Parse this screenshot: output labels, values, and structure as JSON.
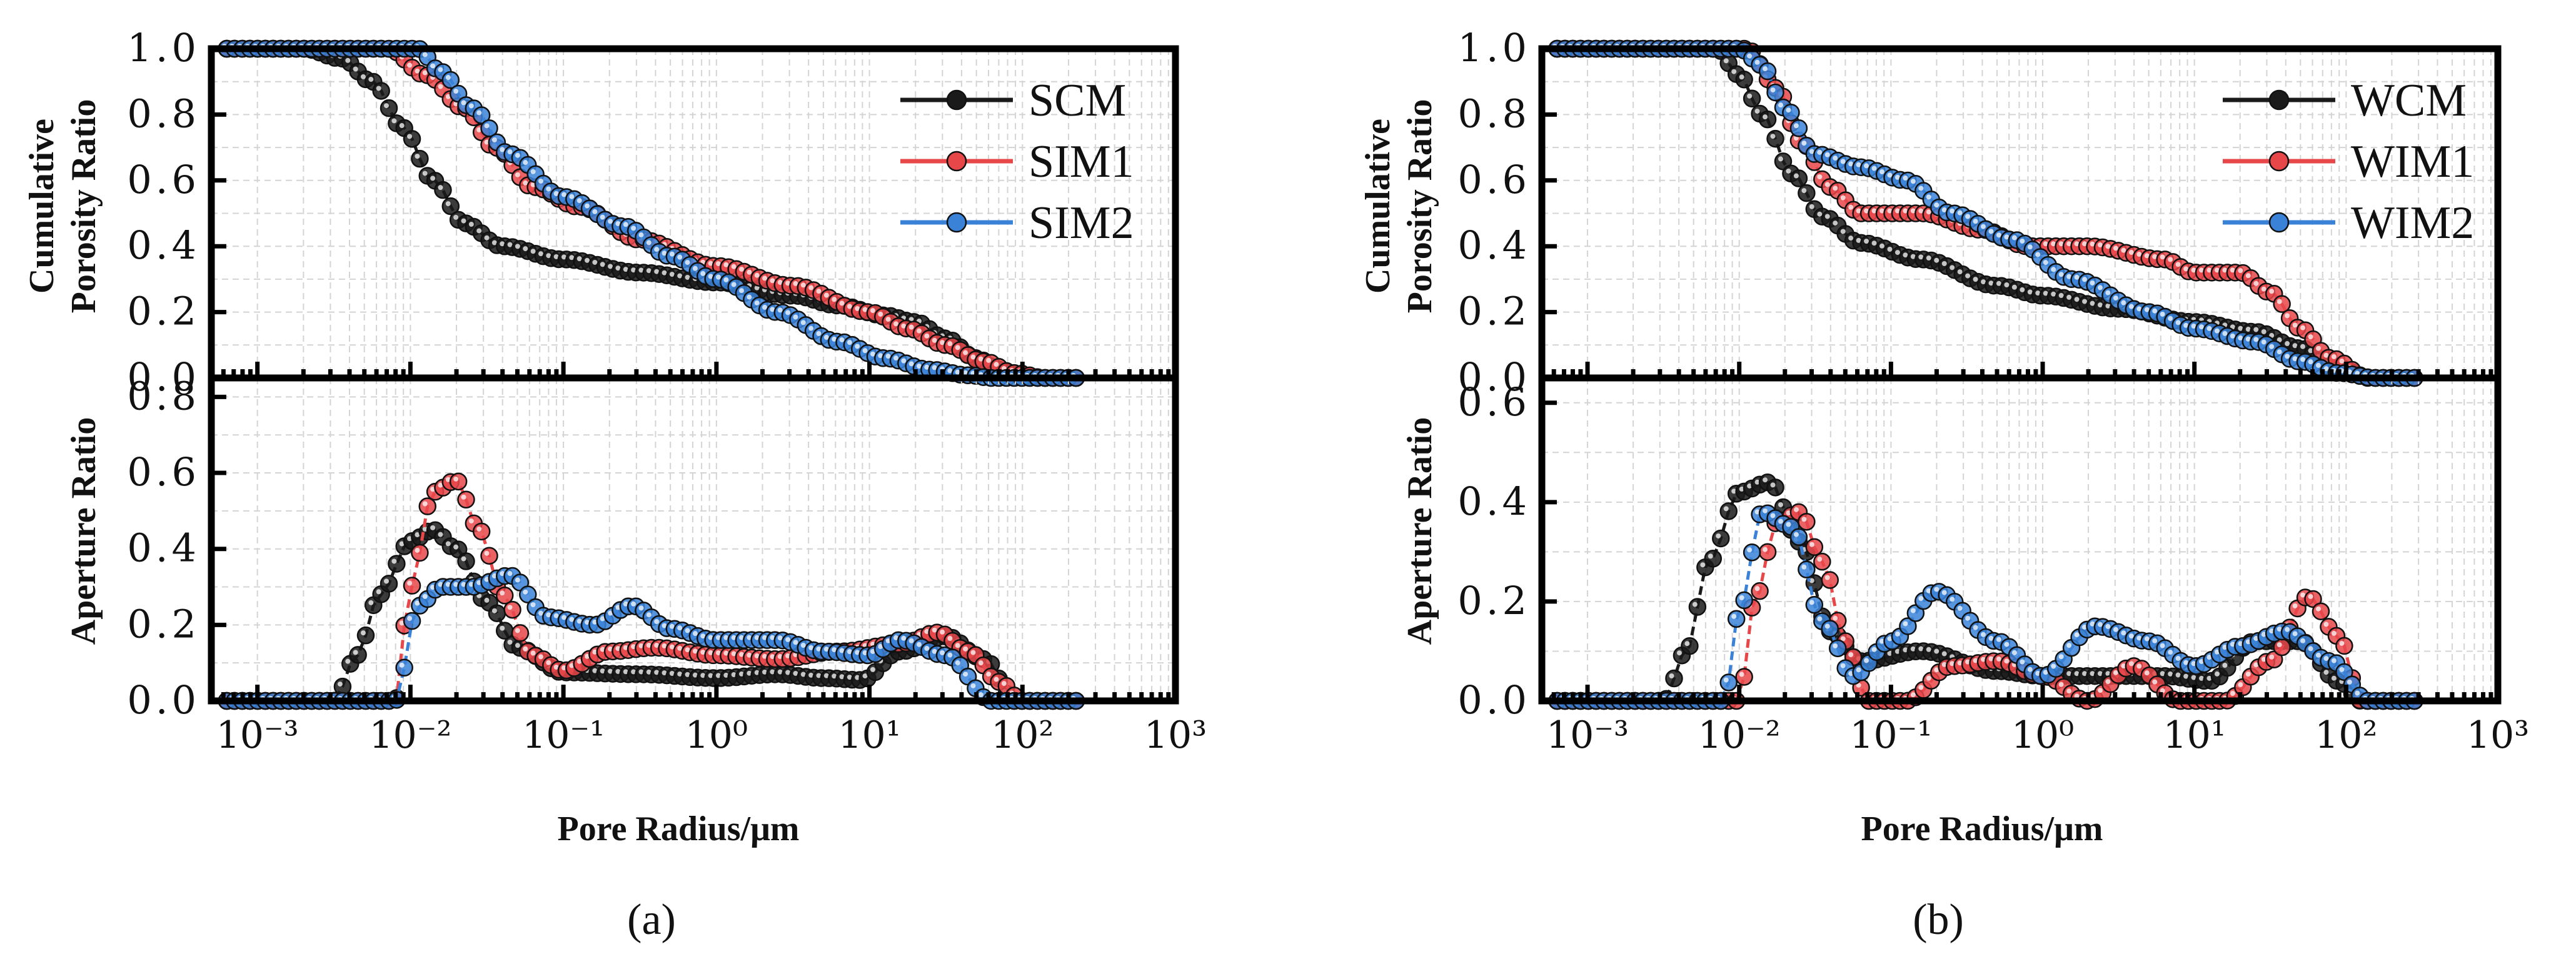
{
  "figure": {
    "x_axis_title": "Pore Radius/μm",
    "x_tick_labels": [
      "10⁻³",
      "10⁻²",
      "10⁻¹",
      "10⁰",
      "10¹",
      "10²",
      "10³"
    ],
    "cum_y_title_line1": "Cumulative",
    "cum_y_title_line2": "Porosity Ratio",
    "ap_y_title": "Aperture Ratio",
    "panel_a_label": "(a)",
    "panel_b_label": "(b)"
  },
  "colors": {
    "black": "#1a1a1a",
    "red": "#e8474a",
    "blue": "#3a82d8"
  },
  "chart_data": [
    {
      "id": "a-top",
      "type": "line",
      "xscale": "log",
      "xlim": [
        0.0005,
        1000
      ],
      "ylim": [
        0.0,
        1.0
      ],
      "yticks": [
        0.0,
        0.2,
        0.4,
        0.6,
        0.8,
        1.0
      ],
      "ytick_labels": [
        "0.0",
        "0.2",
        "0.4",
        "0.6",
        "0.8",
        "1.0"
      ],
      "ylabel": "Cumulative Porosity Ratio",
      "legend": "top-right",
      "series": [
        {
          "name": "SCM",
          "color": "#1a1a1a",
          "log_x": [
            -3.2,
            -2.7,
            -2.45,
            -2.25,
            -2.05,
            -1.85,
            -1.65,
            -1.4,
            -1.0,
            -0.5,
            0.0,
            0.5,
            0.8,
            1.1,
            1.3,
            1.5,
            1.7,
            1.85,
            1.95,
            2.1,
            2.35
          ],
          "y": [
            1.0,
            1.0,
            0.97,
            0.9,
            0.76,
            0.6,
            0.47,
            0.4,
            0.36,
            0.32,
            0.29,
            0.25,
            0.22,
            0.19,
            0.17,
            0.12,
            0.06,
            0.025,
            0.01,
            0.0,
            0.0
          ]
        },
        {
          "name": "SIM1",
          "color": "#e8474a",
          "log_x": [
            -3.2,
            -2.15,
            -1.9,
            -1.65,
            -1.45,
            -1.2,
            -0.9,
            -0.5,
            0.0,
            0.5,
            1.0,
            1.25,
            1.5,
            1.75,
            1.95,
            2.15,
            2.35
          ],
          "y": [
            1.0,
            1.0,
            0.92,
            0.82,
            0.7,
            0.58,
            0.52,
            0.42,
            0.34,
            0.28,
            0.2,
            0.15,
            0.1,
            0.05,
            0.015,
            0.0,
            0.0
          ]
        },
        {
          "name": "SIM2",
          "color": "#3a82d8",
          "log_x": [
            -3.2,
            -1.95,
            -1.8,
            -1.6,
            -1.35,
            -1.0,
            -0.6,
            -0.3,
            0.0,
            0.4,
            0.8,
            1.1,
            1.4,
            1.65,
            1.8,
            2.0,
            2.35
          ],
          "y": [
            1.0,
            1.0,
            0.93,
            0.82,
            0.68,
            0.55,
            0.46,
            0.37,
            0.3,
            0.2,
            0.11,
            0.06,
            0.025,
            0.008,
            0.0,
            0.0,
            0.0
          ]
        }
      ]
    },
    {
      "id": "a-bottom",
      "type": "line",
      "xscale": "log",
      "xlim": [
        0.0005,
        1000
      ],
      "ylim": [
        0.0,
        0.85
      ],
      "yticks": [
        0.0,
        0.2,
        0.4,
        0.6,
        0.8
      ],
      "ytick_labels": [
        "0.0",
        "0.2",
        "0.4",
        "0.6",
        "0.8"
      ],
      "ylabel": "Aperture Ratio",
      "series": [
        {
          "name": "SCM",
          "color": "#1a1a1a",
          "log_x": [
            -3.2,
            -2.5,
            -2.35,
            -2.2,
            -2.0,
            -1.85,
            -1.7,
            -1.5,
            -1.3,
            -1.0,
            -0.5,
            0.0,
            0.4,
            0.7,
            0.95,
            1.2,
            1.5,
            1.75,
            1.95,
            2.35
          ],
          "y": [
            0.0,
            0.0,
            0.12,
            0.28,
            0.42,
            0.45,
            0.4,
            0.26,
            0.14,
            0.075,
            0.07,
            0.06,
            0.07,
            0.06,
            0.055,
            0.13,
            0.17,
            0.11,
            0.0,
            0.0
          ]
        },
        {
          "name": "SIM1",
          "color": "#e8474a",
          "log_x": [
            -3.2,
            -2.1,
            -2.0,
            -1.85,
            -1.7,
            -1.55,
            -1.4,
            -1.2,
            -1.0,
            -0.7,
            -0.4,
            0.0,
            0.4,
            0.8,
            1.2,
            1.45,
            1.65,
            1.85,
            2.0,
            2.35
          ],
          "y": [
            0.0,
            0.0,
            0.3,
            0.55,
            0.58,
            0.45,
            0.28,
            0.12,
            0.08,
            0.13,
            0.14,
            0.12,
            0.11,
            0.13,
            0.15,
            0.18,
            0.13,
            0.05,
            0.0,
            0.0
          ]
        },
        {
          "name": "SIM2",
          "color": "#3a82d8",
          "log_x": [
            -3.2,
            -2.1,
            -1.95,
            -1.8,
            -1.6,
            -1.35,
            -1.1,
            -0.8,
            -0.55,
            -0.3,
            0.0,
            0.4,
            0.7,
            1.0,
            1.2,
            1.5,
            1.8,
            2.35
          ],
          "y": [
            0.0,
            0.0,
            0.25,
            0.3,
            0.3,
            0.33,
            0.22,
            0.2,
            0.25,
            0.19,
            0.16,
            0.16,
            0.13,
            0.12,
            0.16,
            0.12,
            0.0,
            0.0
          ]
        }
      ]
    },
    {
      "id": "b-top",
      "type": "line",
      "xscale": "log",
      "xlim": [
        0.0005,
        1000
      ],
      "ylim": [
        0.0,
        1.0
      ],
      "yticks": [
        0.0,
        0.2,
        0.4,
        0.6,
        0.8,
        1.0
      ],
      "ytick_labels": [
        "0.0",
        "0.2",
        "0.4",
        "0.6",
        "0.8",
        "1.0"
      ],
      "ylabel": "Cumulative Porosity Ratio",
      "legend": "top-right",
      "series": [
        {
          "name": "WCM",
          "color": "#1a1a1a",
          "log_x": [
            -3.2,
            -2.15,
            -2.0,
            -1.85,
            -1.65,
            -1.45,
            -1.2,
            -0.8,
            -0.3,
            0.0,
            0.5,
            1.0,
            1.4,
            1.7,
            1.95,
            2.15,
            2.45
          ],
          "y": [
            1.0,
            1.0,
            0.92,
            0.8,
            0.62,
            0.49,
            0.41,
            0.36,
            0.28,
            0.25,
            0.21,
            0.17,
            0.14,
            0.09,
            0.03,
            0.0,
            0.0
          ]
        },
        {
          "name": "WIM1",
          "color": "#e8474a",
          "log_x": [
            -3.2,
            -1.95,
            -1.75,
            -1.6,
            -1.4,
            -1.2,
            -0.8,
            -0.4,
            -0.1,
            0.3,
            0.8,
            1.0,
            1.3,
            1.5,
            1.7,
            1.9,
            2.15,
            2.45
          ],
          "y": [
            1.0,
            1.0,
            0.88,
            0.72,
            0.58,
            0.5,
            0.5,
            0.45,
            0.4,
            0.4,
            0.36,
            0.32,
            0.32,
            0.26,
            0.15,
            0.06,
            0.0,
            0.0
          ]
        },
        {
          "name": "WIM2",
          "color": "#3a82d8",
          "log_x": [
            -3.2,
            -2.0,
            -1.85,
            -1.7,
            -1.5,
            -1.2,
            -0.9,
            -0.6,
            -0.2,
            0.2,
            0.7,
            1.0,
            1.4,
            1.7,
            1.95,
            2.2,
            2.45
          ],
          "y": [
            1.0,
            1.0,
            0.95,
            0.82,
            0.68,
            0.64,
            0.6,
            0.5,
            0.42,
            0.3,
            0.2,
            0.15,
            0.11,
            0.05,
            0.015,
            0.0,
            0.0
          ]
        }
      ]
    },
    {
      "id": "b-bottom",
      "type": "line",
      "xscale": "log",
      "xlim": [
        0.0005,
        1000
      ],
      "ylim": [
        0.0,
        0.65
      ],
      "yticks": [
        0.0,
        0.2,
        0.4,
        0.6
      ],
      "ytick_labels": [
        "0.0",
        "0.2",
        "0.4",
        "0.6"
      ],
      "ylabel": "Aperture Ratio",
      "series": [
        {
          "name": "WCM",
          "color": "#1a1a1a",
          "log_x": [
            -3.2,
            -2.5,
            -2.35,
            -2.2,
            -2.0,
            -1.8,
            -1.6,
            -1.4,
            -1.2,
            -0.8,
            -0.3,
            0.0,
            0.5,
            0.8,
            1.1,
            1.4,
            1.7,
            1.95,
            2.1,
            2.45
          ],
          "y": [
            0.0,
            0.0,
            0.1,
            0.28,
            0.42,
            0.44,
            0.32,
            0.14,
            0.08,
            0.1,
            0.06,
            0.05,
            0.05,
            0.05,
            0.04,
            0.12,
            0.12,
            0.04,
            0.0,
            0.0
          ]
        },
        {
          "name": "WIM1",
          "color": "#e8474a",
          "log_x": [
            -3.2,
            -2.0,
            -1.9,
            -1.75,
            -1.6,
            -1.45,
            -1.3,
            -1.15,
            -0.9,
            -0.6,
            -0.3,
            0.0,
            0.3,
            0.6,
            0.9,
            1.2,
            1.5,
            1.75,
            1.95,
            2.1,
            2.45
          ],
          "y": [
            0.0,
            0.0,
            0.2,
            0.36,
            0.38,
            0.28,
            0.12,
            0.0,
            0.0,
            0.07,
            0.08,
            0.05,
            0.0,
            0.07,
            0.0,
            0.0,
            0.08,
            0.21,
            0.13,
            0.0,
            0.0
          ]
        },
        {
          "name": "WIM2",
          "color": "#3a82d8",
          "log_x": [
            -3.2,
            -2.1,
            -2.0,
            -1.85,
            -1.65,
            -1.45,
            -1.25,
            -1.0,
            -0.7,
            -0.3,
            0.0,
            0.35,
            0.7,
            1.0,
            1.3,
            1.6,
            1.9,
            2.15,
            2.45
          ],
          "y": [
            0.0,
            0.0,
            0.18,
            0.38,
            0.35,
            0.16,
            0.05,
            0.12,
            0.22,
            0.12,
            0.05,
            0.15,
            0.12,
            0.07,
            0.11,
            0.14,
            0.08,
            0.0,
            0.0
          ]
        }
      ]
    }
  ]
}
